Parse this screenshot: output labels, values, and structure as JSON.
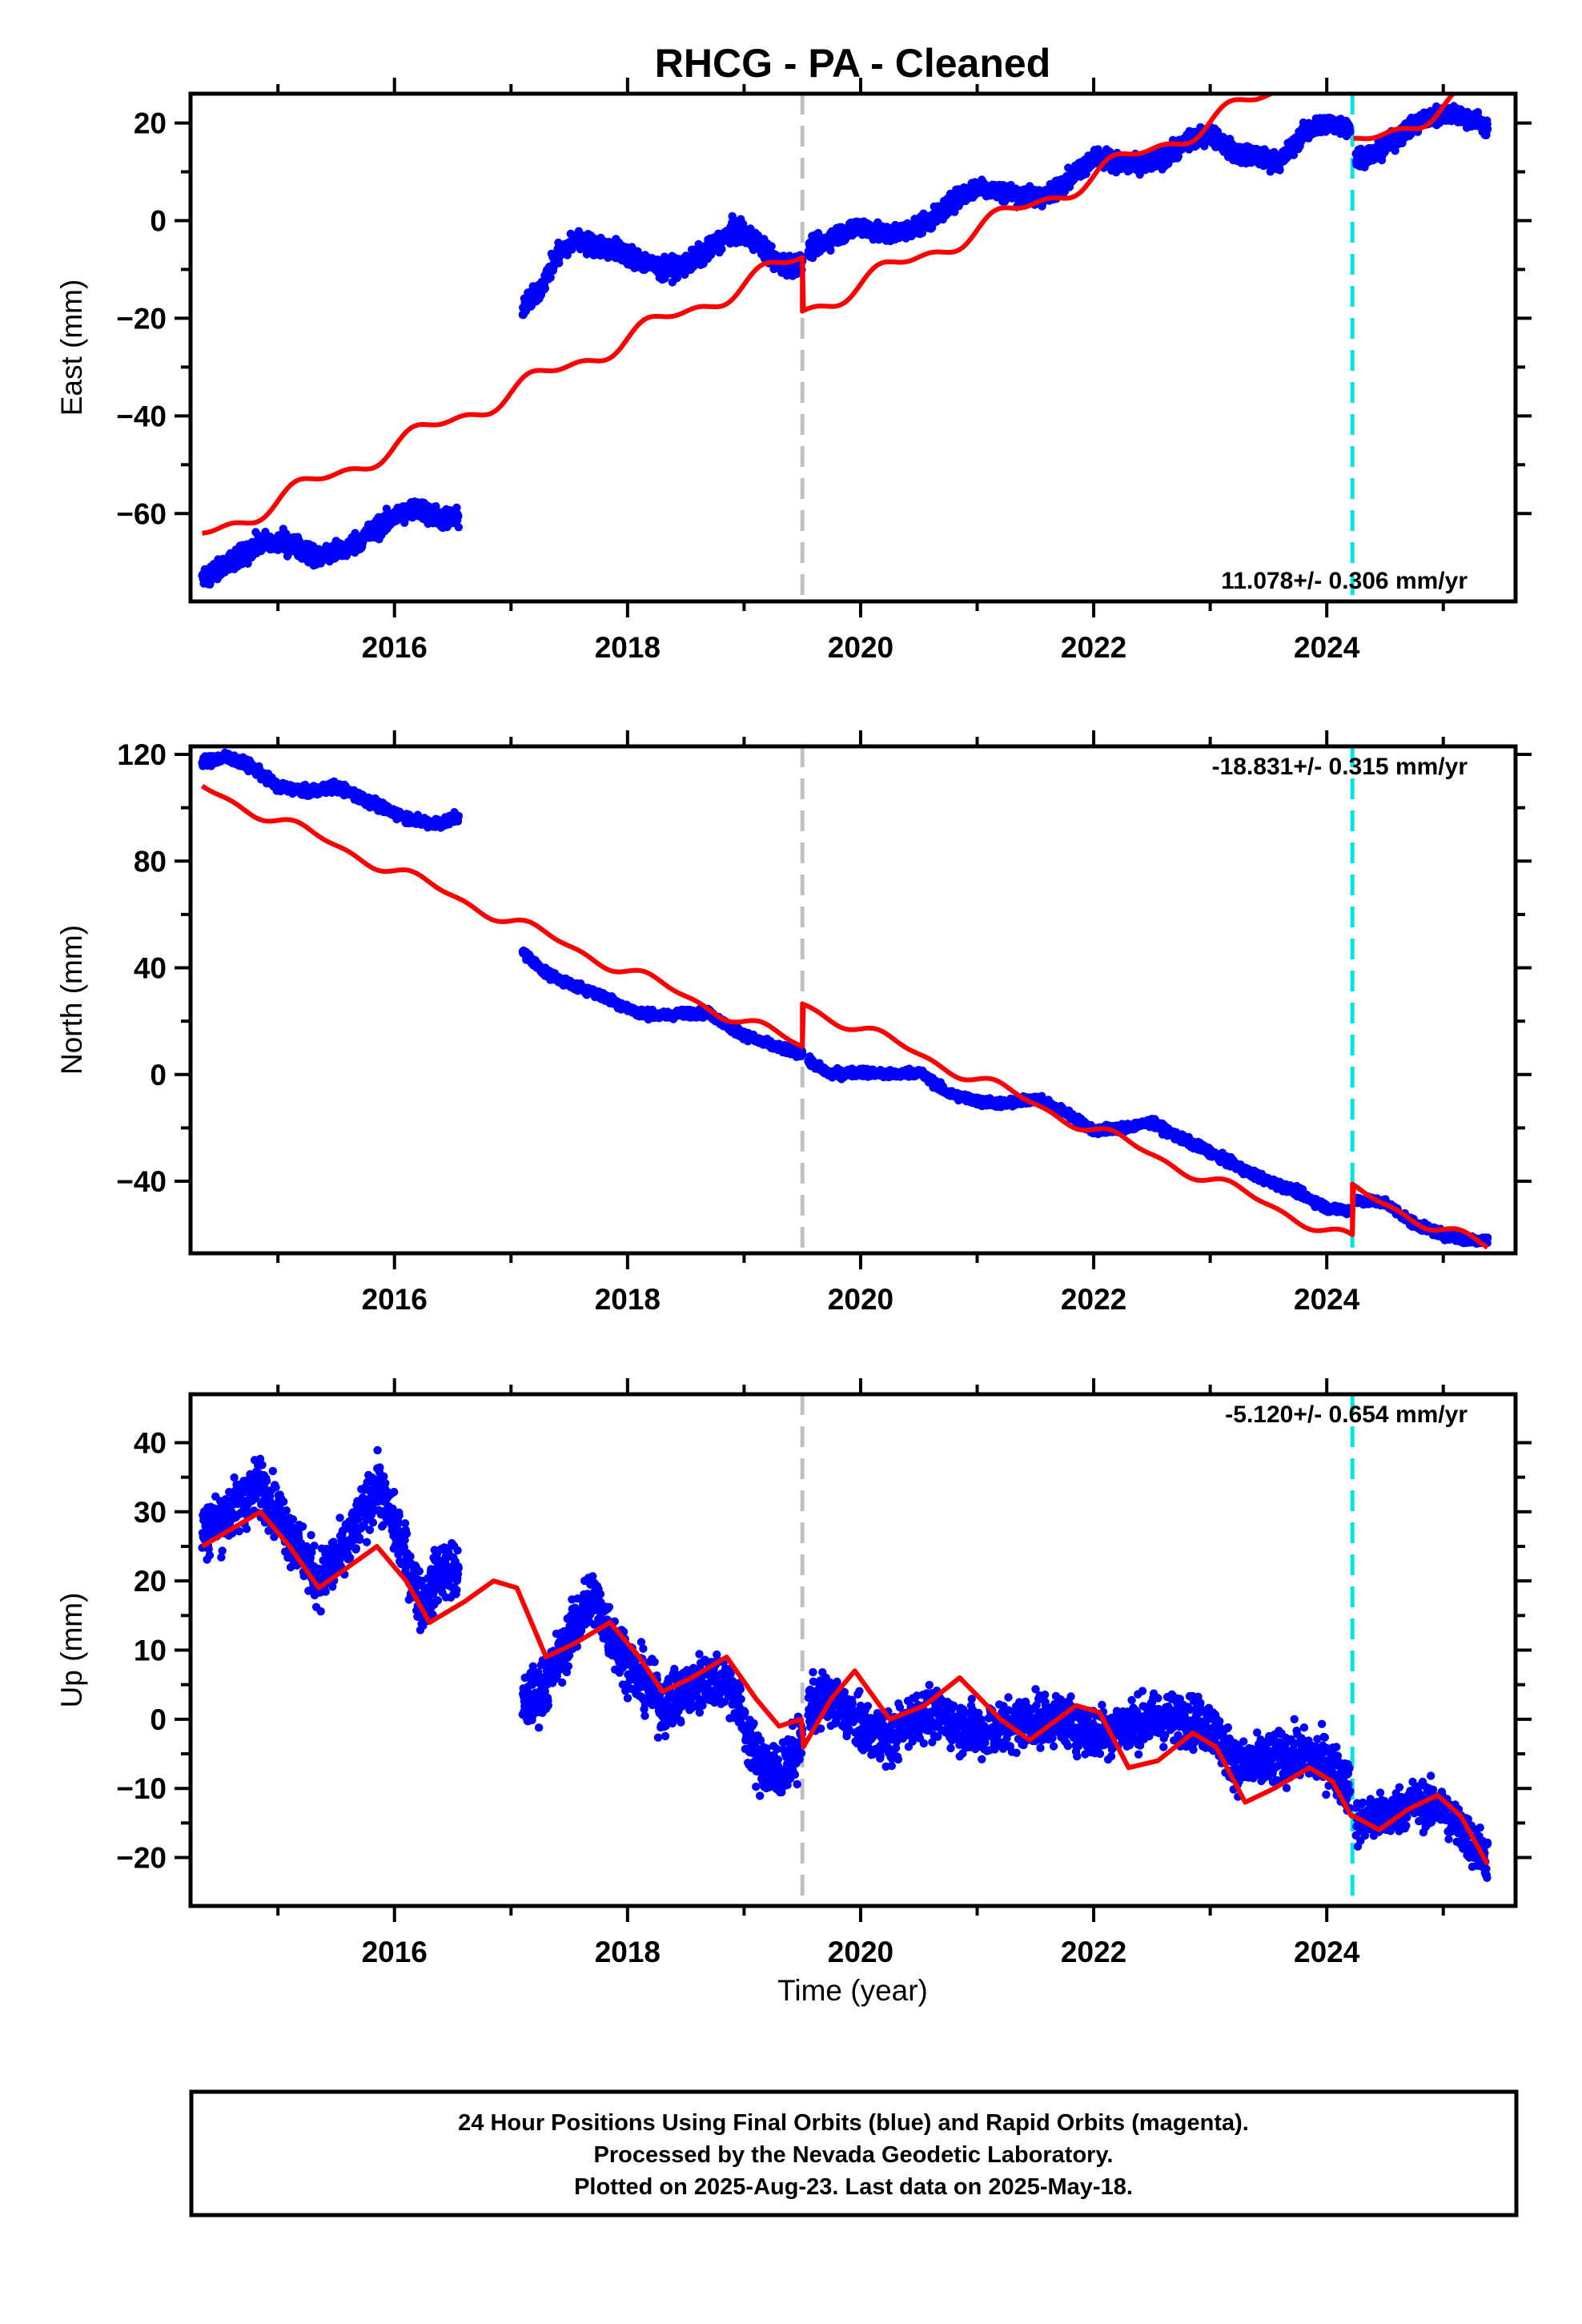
{
  "title": "RHCG  - PA - Cleaned",
  "x_axis_label": "Time (year)",
  "x_tick_labels": [
    "2016",
    "2018",
    "2020",
    "2022",
    "2024"
  ],
  "vertical_markers": [
    {
      "year": 2019.5,
      "color": "#c0c0c0",
      "style": "dashed"
    },
    {
      "year": 2024.22,
      "color": "#00e5e5",
      "style": "dashed"
    }
  ],
  "colors": {
    "data": "#0000ff",
    "model": "#ff0000",
    "frame": "#000000"
  },
  "footer": {
    "line1": "24 Hour Positions Using Final Orbits (blue) and Rapid Orbits (magenta).",
    "line2": "Processed by the Nevada Geodetic Laboratory.",
    "line3": "Plotted on 2025-Aug-23. Last data on 2025-May-18."
  },
  "chart_data": [
    {
      "type": "scatter",
      "panel": "east",
      "ylabel": "East (mm)",
      "rate": "11.078+/- 0.306 mm/yr",
      "xlim": [
        2014.25,
        2025.62
      ],
      "ylim": [
        -78,
        26
      ],
      "y_ticks": [
        20,
        0,
        -20,
        -40,
        -60
      ],
      "y_tick_labels": [
        "20",
        "0",
        "−20",
        "−40",
        "−60"
      ],
      "data_segments": [
        {
          "x": [
            2014.35,
            2014.6,
            2014.85,
            2015.1,
            2015.35,
            2015.6,
            2015.85,
            2016.05,
            2016.2,
            2016.4,
            2016.55
          ],
          "y": [
            -73,
            -70,
            -66,
            -66,
            -69,
            -67,
            -63,
            -60,
            -59,
            -61,
            -61
          ],
          "spread": 2
        },
        {
          "x": [
            2017.1,
            2017.25,
            2017.4,
            2017.55,
            2017.7,
            2017.9,
            2018.1,
            2018.3,
            2018.5,
            2018.7,
            2018.9,
            2019.1,
            2019.3,
            2019.5
          ],
          "y": [
            -18,
            -14,
            -7,
            -4,
            -5,
            -6,
            -8,
            -10,
            -9,
            -6,
            -2,
            -4,
            -9,
            -9
          ],
          "spread": 2
        },
        {
          "x": [
            2019.55,
            2019.8,
            2020.0,
            2020.2,
            2020.4,
            2020.6,
            2020.8,
            2021.0,
            2021.2,
            2021.4,
            2021.6,
            2021.8,
            2022.0,
            2022.2,
            2022.4,
            2022.6,
            2022.8,
            2023.0,
            2023.2,
            2023.4,
            2023.6,
            2023.8,
            2024.0,
            2024.2
          ],
          "y": [
            -6,
            -3,
            -1,
            -3,
            -2,
            0,
            4,
            7,
            6,
            5,
            5,
            9,
            13,
            12,
            11,
            13,
            16,
            18,
            14,
            13,
            12,
            18,
            20,
            19
          ],
          "spread": 1.8
        },
        {
          "x": [
            2024.25,
            2024.45,
            2024.65,
            2024.85,
            2025.05,
            2025.25,
            2025.38
          ],
          "y": [
            13,
            14,
            18,
            21,
            22,
            21,
            19
          ],
          "spread": 1.8
        }
      ],
      "model": {
        "t0": 2014.35,
        "v0": -64.6,
        "rate": 11.078,
        "season": [
          1.8,
          0.9
        ],
        "offsets": [
          {
            "t": 2019.5,
            "dy": -11
          },
          {
            "t": 2024.22,
            "dy": -19
          }
        ],
        "end": 2025.38
      }
    },
    {
      "type": "scatter",
      "panel": "north",
      "ylabel": "North (mm)",
      "rate": "-18.831+/- 0.315 mm/yr",
      "xlim": [
        2014.25,
        2025.62
      ],
      "ylim": [
        -67,
        123
      ],
      "y_ticks": [
        120,
        80,
        40,
        0,
        -40
      ],
      "y_tick_labels": [
        "120",
        "80",
        "40",
        "0",
        "−40"
      ],
      "data_segments": [
        {
          "x": [
            2014.35,
            2014.55,
            2014.75,
            2015.0,
            2015.25,
            2015.5,
            2015.75,
            2016.0,
            2016.2,
            2016.4,
            2016.55
          ],
          "y": [
            117,
            119,
            116,
            108,
            106,
            108,
            103,
            98,
            95,
            94,
            97
          ],
          "spread": 1.8
        },
        {
          "x": [
            2017.1,
            2017.3,
            2017.5,
            2017.7,
            2017.9,
            2018.1,
            2018.3,
            2018.5,
            2018.7,
            2018.9,
            2019.1,
            2019.3,
            2019.5
          ],
          "y": [
            46,
            38,
            34,
            31,
            27,
            23,
            22,
            23,
            23,
            17,
            13,
            10,
            8
          ],
          "spread": 1.5
        },
        {
          "x": [
            2019.55,
            2019.75,
            2020.0,
            2020.25,
            2020.5,
            2020.75,
            2021.0,
            2021.25,
            2021.5,
            2021.75,
            2022.0,
            2022.25,
            2022.5,
            2022.75,
            2023.0,
            2023.25,
            2023.5,
            2023.75,
            2024.0,
            2024.2
          ],
          "y": [
            5,
            0,
            1,
            0,
            1,
            -7,
            -10,
            -11,
            -9,
            -14,
            -21,
            -20,
            -18,
            -24,
            -29,
            -35,
            -40,
            -44,
            -50,
            -51
          ],
          "spread": 1.5
        },
        {
          "x": [
            2024.25,
            2024.5,
            2024.75,
            2025.0,
            2025.2,
            2025.38
          ],
          "y": [
            -47,
            -48,
            -56,
            -60,
            -62,
            -62
          ],
          "spread": 1.5
        }
      ],
      "model": {
        "t0": 2014.35,
        "v0": 107.5,
        "rate": -18.831,
        "season": [
          2.0,
          1.0
        ],
        "offsets": [
          {
            "t": 2019.5,
            "dy": 16
          },
          {
            "t": 2024.22,
            "dy": 19
          }
        ],
        "end": 2025.38
      }
    },
    {
      "type": "scatter",
      "panel": "up",
      "ylabel": "Up (mm)",
      "rate": "-5.120+/- 0.654 mm/yr",
      "xlim": [
        2014.25,
        2025.62
      ],
      "ylim": [
        -27,
        47
      ],
      "y_ticks": [
        40,
        30,
        20,
        10,
        0,
        -10,
        -20
      ],
      "y_tick_labels": [
        "40",
        "30",
        "20",
        "10",
        "0",
        "−10",
        "−20"
      ],
      "data_segments": [
        {
          "x": [
            2014.35,
            2014.6,
            2014.85,
            2015.1,
            2015.35,
            2015.6,
            2015.85,
            2016.05,
            2016.25,
            2016.4,
            2016.55
          ],
          "y": [
            27,
            30,
            34,
            27,
            20,
            25,
            34,
            26,
            16,
            22,
            21
          ],
          "spread": 4
        },
        {
          "x": [
            2017.1,
            2017.3,
            2017.5,
            2017.7,
            2017.9,
            2018.1,
            2018.3,
            2018.5,
            2018.7,
            2018.9,
            2019.1,
            2019.3,
            2019.5
          ],
          "y": [
            2,
            5,
            12,
            18,
            11,
            6,
            2,
            4,
            6,
            5,
            -6,
            -8,
            -3
          ],
          "spread": 4
        },
        {
          "x": [
            2019.55,
            2019.75,
            2020.0,
            2020.25,
            2020.5,
            2020.75,
            2021.0,
            2021.25,
            2021.5,
            2021.75,
            2022.0,
            2022.25,
            2022.5,
            2022.75,
            2023.0,
            2023.25,
            2023.5,
            2023.75,
            2024.0,
            2024.2
          ],
          "y": [
            2,
            3,
            -1,
            -3,
            1,
            0,
            -2,
            -1,
            0,
            0,
            -2,
            -1,
            0,
            0,
            -1,
            -7,
            -6,
            -5,
            -6,
            -10
          ],
          "spread": 3.6
        },
        {
          "x": [
            2024.25,
            2024.5,
            2024.75,
            2025.0,
            2025.2,
            2025.38
          ],
          "y": [
            -15,
            -14,
            -12,
            -13,
            -17,
            -20
          ],
          "spread": 3.2
        }
      ],
      "model_points": {
        "x": [
          2014.35,
          2014.55,
          2014.85,
          2015.1,
          2015.35,
          2015.6,
          2015.85,
          2016.1,
          2016.3,
          2016.6,
          2016.85,
          2017.05,
          2017.3,
          2017.55,
          2017.85,
          2018.1,
          2018.3,
          2018.55,
          2018.85,
          2019.1,
          2019.3,
          2019.49,
          2019.51,
          2019.75,
          2019.95,
          2020.25,
          2020.55,
          2020.85,
          2021.2,
          2021.45,
          2021.85,
          2022.05,
          2022.3,
          2022.55,
          2022.85,
          2023.05,
          2023.3,
          2023.55,
          2023.85,
          2024.05,
          2024.21,
          2024.23,
          2024.45,
          2024.7,
          2024.95,
          2025.15,
          2025.38
        ],
        "y": [
          25,
          27,
          30,
          25,
          19,
          22,
          25,
          20,
          14,
          17,
          20,
          19,
          9,
          11,
          14,
          9,
          4,
          6,
          9,
          3,
          -1,
          0,
          -4,
          3,
          7,
          0,
          2,
          6,
          0,
          -3,
          2,
          1,
          -7,
          -6,
          -2,
          -4,
          -12,
          -10,
          -7,
          -9,
          -14,
          -14,
          -16,
          -13,
          -11,
          -14,
          -21
        ]
      }
    }
  ]
}
